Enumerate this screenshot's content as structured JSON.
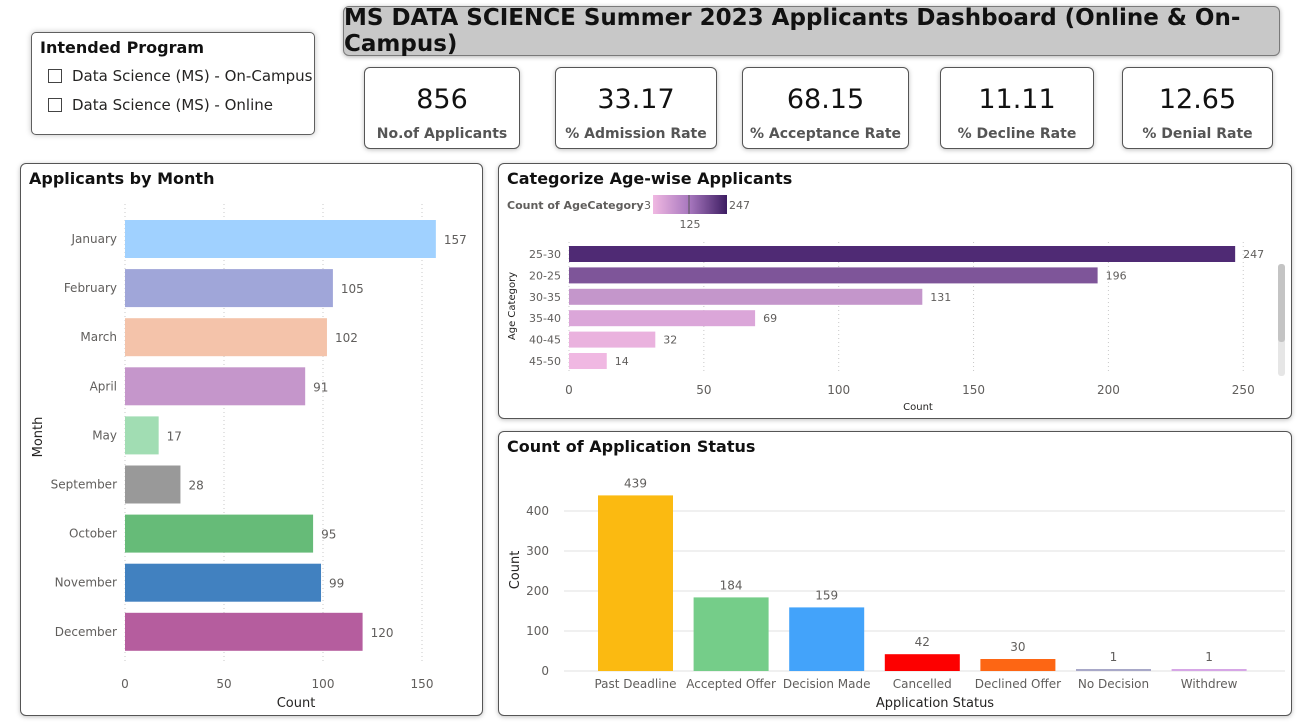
{
  "slicer": {
    "title": "Intended Program",
    "items": [
      "Data Science (MS) - On-Campus",
      "Data Science (MS) - Online"
    ]
  },
  "title": "MS DATA SCIENCE Summer 2023 Applicants Dashboard (Online & On-Campus)",
  "kpis": [
    {
      "value": "856",
      "label": "No.of Applicants"
    },
    {
      "value": "33.17",
      "label": "% Admission Rate"
    },
    {
      "value": "68.15",
      "label": "% Acceptance Rate"
    },
    {
      "value": "11.11",
      "label": "% Decline Rate"
    },
    {
      "value": "12.65",
      "label": "% Denial Rate"
    }
  ],
  "chart_data": [
    {
      "type": "bar",
      "orientation": "horizontal",
      "title": "Applicants by Month",
      "xlabel": "Count",
      "ylabel": "Month",
      "categories": [
        "January",
        "February",
        "March",
        "April",
        "May",
        "September",
        "October",
        "November",
        "December"
      ],
      "values": [
        157,
        105,
        102,
        91,
        17,
        28,
        95,
        99,
        120
      ],
      "colors": [
        "#a0d1ff",
        "#a0a6d9",
        "#f4c3aa",
        "#c596cb",
        "#a1ddb3",
        "#999999",
        "#66bb78",
        "#4181c0",
        "#b55d9e"
      ],
      "xlim": [
        0,
        175
      ],
      "xticks": [
        0,
        50,
        100,
        150
      ],
      "grid": true
    },
    {
      "type": "bar",
      "orientation": "horizontal",
      "title": "Categorize Age-wise Applicants",
      "legend": {
        "label": "Count of AgeCategory",
        "min": "3",
        "mid": "125",
        "max": "247"
      },
      "xlabel": "Count",
      "ylabel": "Age Category",
      "categories": [
        "25-30",
        "20-25",
        "30-35",
        "35-40",
        "40-45",
        "45-50"
      ],
      "values": [
        247,
        196,
        131,
        69,
        32,
        14
      ],
      "colors": [
        "#4f2a74",
        "#7e5599",
        "#c496cb",
        "#dba6d9",
        "#eab2de",
        "#f0b8e2"
      ],
      "xlim": [
        0,
        255
      ],
      "xticks": [
        0,
        50,
        100,
        150,
        200,
        250
      ],
      "grid": true
    },
    {
      "type": "bar",
      "title": "Count of Application Status",
      "xlabel": "Application Status",
      "ylabel": "Count",
      "categories": [
        "Past Deadline",
        "Accepted Offer",
        "Decision Made",
        "Cancelled",
        "Declined Offer",
        "No Decision",
        "Withdrew"
      ],
      "values": [
        439,
        184,
        159,
        42,
        30,
        1,
        1
      ],
      "colors": [
        "#fbba11",
        "#75cd89",
        "#43a3fa",
        "#fd0000",
        "#fd6614",
        "#a8a8c8",
        "#d6a6e6"
      ],
      "ylim": [
        0,
        480
      ],
      "yticks": [
        0,
        100,
        200,
        300,
        400
      ],
      "grid": true
    }
  ]
}
